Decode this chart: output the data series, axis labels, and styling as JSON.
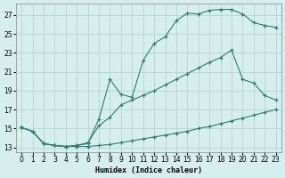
{
  "xlabel": "Humidex (Indice chaleur)",
  "bg_color": "#d6eeee",
  "grid_color": "#b0d0d0",
  "line_color": "#2e7d6e",
  "xlim": [
    -0.5,
    23.5
  ],
  "ylim": [
    12.5,
    28.2
  ],
  "xticks": [
    0,
    1,
    2,
    3,
    4,
    5,
    6,
    7,
    8,
    9,
    10,
    11,
    12,
    13,
    14,
    15,
    16,
    17,
    18,
    19,
    20,
    21,
    22,
    23
  ],
  "yticks": [
    13,
    15,
    17,
    19,
    21,
    23,
    25,
    27
  ],
  "line1_x": [
    0,
    1,
    2,
    3,
    4,
    5,
    6,
    7,
    8,
    9,
    10,
    11,
    12,
    13,
    14,
    15,
    16,
    17,
    18,
    19,
    20,
    21,
    22,
    23
  ],
  "line1_y": [
    15.1,
    14.7,
    13.4,
    13.2,
    13.1,
    13.1,
    13.1,
    13.2,
    13.3,
    13.5,
    13.7,
    13.9,
    14.1,
    14.3,
    14.5,
    14.7,
    15.0,
    15.2,
    15.5,
    15.8,
    16.1,
    16.4,
    16.7,
    17.0
  ],
  "line2_x": [
    0,
    1,
    2,
    3,
    4,
    5,
    6,
    7,
    8,
    9,
    10,
    11,
    12,
    13,
    14,
    15,
    16,
    17,
    18,
    19,
    20,
    21,
    22,
    23
  ],
  "line2_y": [
    15.1,
    14.7,
    13.4,
    13.2,
    13.1,
    13.2,
    13.5,
    15.3,
    16.2,
    17.5,
    18.0,
    18.5,
    19.0,
    19.6,
    20.2,
    20.8,
    21.4,
    22.0,
    22.5,
    23.3,
    20.2,
    19.8,
    18.5,
    18.0
  ],
  "line3_x": [
    0,
    1,
    2,
    3,
    4,
    5,
    6,
    7,
    8,
    9,
    10,
    11,
    12,
    13,
    14,
    15,
    16,
    17,
    18,
    19,
    20,
    21,
    22,
    23
  ],
  "line3_y": [
    15.1,
    14.7,
    13.4,
    13.2,
    13.1,
    13.2,
    13.4,
    16.0,
    20.2,
    18.6,
    18.3,
    22.2,
    24.0,
    24.7,
    26.4,
    27.2,
    27.1,
    27.5,
    27.6,
    27.6,
    27.1,
    26.2,
    25.9,
    25.7
  ]
}
